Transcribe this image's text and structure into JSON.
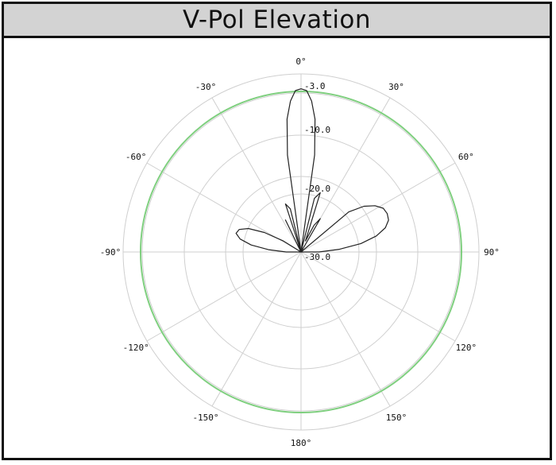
{
  "chart_data": {
    "type": "polar",
    "title": "V-Pol Elevation",
    "angle_labels": [
      "0°",
      "30°",
      "60°",
      "90°",
      "120°",
      "150°",
      "180°",
      "-150°",
      "-120°",
      "-90°",
      "-60°",
      "-30°"
    ],
    "angle_values": [
      0,
      30,
      60,
      90,
      120,
      150,
      180,
      -150,
      -120,
      -90,
      -60,
      -30
    ],
    "radial_ticks": [
      -3.0,
      -10.0,
      -20.0,
      -30.0
    ],
    "radial_tick_labels": [
      "-3.0",
      "-10.0",
      "-20.0",
      "-30.0"
    ],
    "radial_range": [
      -30,
      0
    ],
    "reference_level": -3.0,
    "reference_color": "#7fcf7f",
    "trace_color": "#222222",
    "series": [
      {
        "angle_deg": [
          -10,
          -8,
          -6,
          -4,
          -2,
          0,
          2,
          4,
          6,
          8,
          10,
          14,
          18,
          22,
          26,
          30,
          34,
          38,
          42,
          46,
          50,
          54,
          58,
          62,
          66,
          70,
          74,
          78,
          82,
          86,
          90,
          94,
          98
        ],
        "gain_db": [
          -30,
          -13.5,
          -7.5,
          -4.5,
          -2.8,
          -2.5,
          -2.8,
          -4.5,
          -7.5,
          -13.5,
          -30,
          -20.7,
          -19.5,
          -28,
          -25,
          -23.5,
          -30,
          -30,
          -30,
          -30,
          -19.5,
          -16.9,
          -15.3,
          -14.3,
          -14.1,
          -14.3,
          -15.2,
          -17,
          -19.8,
          -23.5,
          -27,
          -30,
          -30
        ]
      },
      {
        "angle_deg": [
          -98,
          -94,
          -90,
          -86,
          -82,
          -78,
          -74,
          -70,
          -66,
          -62,
          -58,
          -54,
          -50,
          -46,
          -42,
          -38,
          -34,
          -30,
          -26,
          -22,
          -18,
          -14,
          -10
        ],
        "gain_db": [
          -30,
          -30,
          -27.5,
          -24.5,
          -21.5,
          -19.5,
          -18.6,
          -18.9,
          -20.3,
          -23,
          -26.5,
          -30,
          -30,
          -30,
          -30,
          -30,
          -30,
          -30,
          -24,
          -30,
          -21.5,
          -22.5,
          -30
        ]
      }
    ]
  }
}
